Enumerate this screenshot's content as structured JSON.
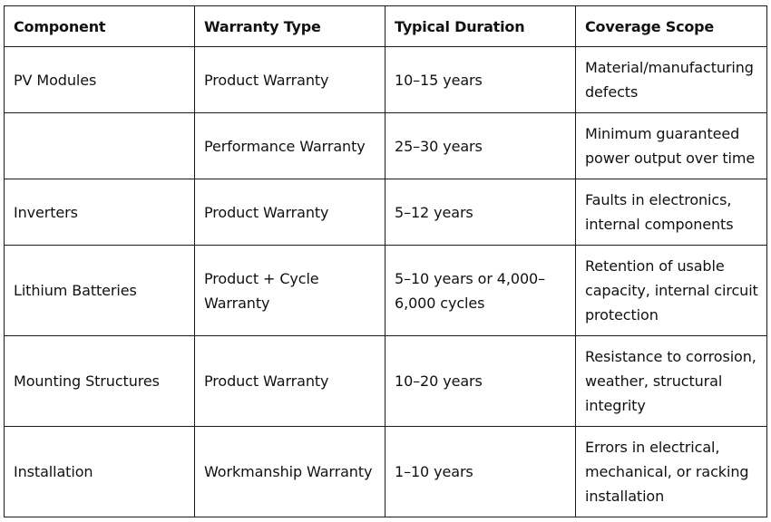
{
  "table": {
    "headers": [
      "Component",
      "Warranty Type",
      "Typical Duration",
      "Coverage Scope"
    ],
    "rows": [
      {
        "component": "PV Modules",
        "warranty_type": "Product Warranty",
        "duration": "10–15 years",
        "coverage_lines": [
          "Material/manufacturing",
          "defects"
        ]
      },
      {
        "component": "",
        "warranty_type": "Performance Warranty",
        "duration": "25–30 years",
        "coverage_lines": [
          "Minimum guaranteed",
          "power output over time"
        ]
      },
      {
        "component": "Inverters",
        "warranty_type": "Product Warranty",
        "duration": "5–12 years",
        "coverage_lines": [
          "Faults in electronics,",
          "internal components"
        ]
      },
      {
        "component": "Lithium Batteries",
        "warranty_type_lines": [
          "Product + Cycle",
          "Warranty"
        ],
        "duration_lines": [
          "5–10 years or 4,000–",
          "6,000 cycles"
        ],
        "coverage_lines": [
          "Retention of usable",
          "capacity, internal circuit",
          "protection"
        ]
      },
      {
        "component": "Mounting Structures",
        "warranty_type": "Product Warranty",
        "duration": "10–20 years",
        "coverage_lines": [
          "Resistance to corrosion,",
          "weather, structural",
          "integrity"
        ]
      },
      {
        "component": "Installation",
        "warranty_type": "Workmanship Warranty",
        "duration": "1–10 years",
        "coverage_lines": [
          "Errors in electrical,",
          "mechanical, or racking",
          "installation"
        ]
      }
    ]
  }
}
